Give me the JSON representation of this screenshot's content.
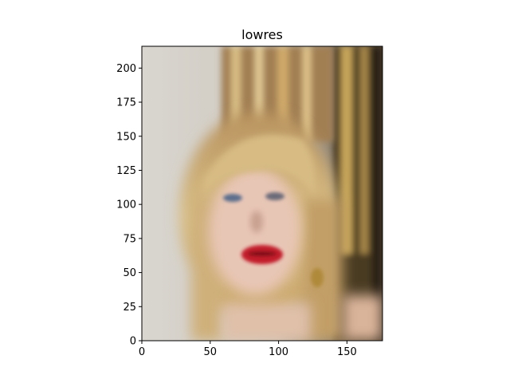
{
  "chart_data": {
    "type": "image",
    "title": "lowres",
    "xlabel": "",
    "ylabel": "",
    "xlim": [
      0,
      176
    ],
    "ylim": [
      0,
      216
    ],
    "x_ticks": [
      0,
      50,
      100,
      150
    ],
    "y_ticks": [
      0,
      25,
      50,
      75,
      100,
      125,
      150,
      175,
      200
    ],
    "grid": false,
    "image_content": "blurry low-resolution portrait of a woman with long blonde hair and bangs, red lipstick, light background"
  }
}
